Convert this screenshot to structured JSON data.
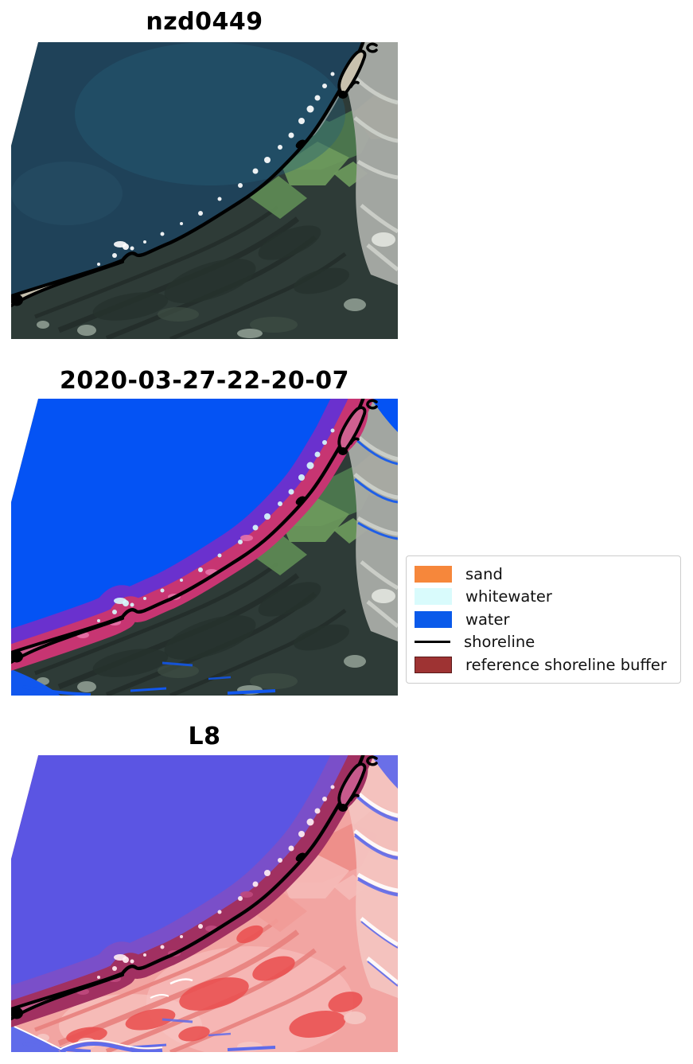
{
  "panels": [
    {
      "title": "nzd0449",
      "kind": "rgb-satellite-image",
      "palette": {
        "water": "#1f4259",
        "water_teal": "#256077",
        "water_light": "#3a6a82",
        "land": "#2e3b37",
        "land_dark": "#26322d",
        "land_light": "#3e4e45",
        "striation": "#232e2a",
        "field_green_dark": "#4e7b4f",
        "field_green_light": "#6c9a5c",
        "field_brown": "#8a7850",
        "field_green_mid": "#5e8b55",
        "river": "#a9aca7",
        "river_streak": "#ced2cb",
        "river_patch": "#e2e5df",
        "sand": "#cfc7b4",
        "spit_fill": "#c9c1ae",
        "surf": "#ffffff",
        "bottom_blob": "#93a296",
        "shoreline": "#000000"
      }
    },
    {
      "title": "2020-03-27-22-20-07",
      "kind": "classified-satellite-image",
      "palette": {
        "water": "#0453f4",
        "land": "#2e3b37",
        "land_dark": "#26322d",
        "land_light": "#3e4e45",
        "striation": "#232e2a",
        "field_green_dark": "#4e7b4f",
        "field_green_light": "#6c9a5c",
        "field_brown": "#8a7850",
        "field_green_mid": "#5e8b55",
        "river": "#a9aca7",
        "river_streak": "#ced2cb",
        "river_patch": "#e2e5df",
        "sand": "#d8cfc0",
        "spit_fill": "#d06090",
        "surf": "#d6fafc",
        "bottom_blob": "#93a296",
        "purple_band": "#6a31ce",
        "crimson_band": "#c73572",
        "pink_blotch": "#e773a8",
        "extra_blue": "#1157ee",
        "shoreline": "#000000"
      }
    },
    {
      "title": "L8",
      "kind": "l8-classification-image",
      "palette": {
        "water": "#5b55e3",
        "land": "#f2a5a2",
        "pale_blob_1": "#f7bcb9",
        "pale_blob_2": "#f8c6c3",
        "striation": "#e8817d",
        "field_green_dark": "#ee8d88",
        "field_green_light": "#f5bab6",
        "field_brown": "#ea6a66",
        "field_green_mid": "#f19b97",
        "river": "#f3c3c0",
        "river_streak": "#ffffff",
        "sand": "#f2b4ae",
        "spit_fill": "#c75a8c",
        "surf": "#ffeef2",
        "bottom_blob": "#f6c9c6",
        "purple_band": "#7a4fc9",
        "crimson_band": "#a13061",
        "pink_blotch": "#c04a7e",
        "extra_blue": "#5f6bea",
        "corner_blue": "#6a6fe8",
        "channel_line": "#ffffff",
        "red_blob": "#e95050",
        "shoreline": "#000000"
      }
    }
  ],
  "legend": {
    "items": [
      {
        "label": "sand",
        "type": "patch",
        "color": "#f6873b",
        "edge": "#f6873b"
      },
      {
        "label": "whitewater",
        "type": "patch",
        "color": "#d9fbfc",
        "edge": "#d9fbfc"
      },
      {
        "label": "water",
        "type": "patch",
        "color": "#0a5aea",
        "edge": "#0a5aea"
      },
      {
        "label": "shoreline",
        "type": "line",
        "color": "#000000"
      },
      {
        "label": "reference shoreline buffer",
        "type": "patch",
        "color": "#9e3333",
        "edge": "#5a1a1a"
      }
    ]
  }
}
